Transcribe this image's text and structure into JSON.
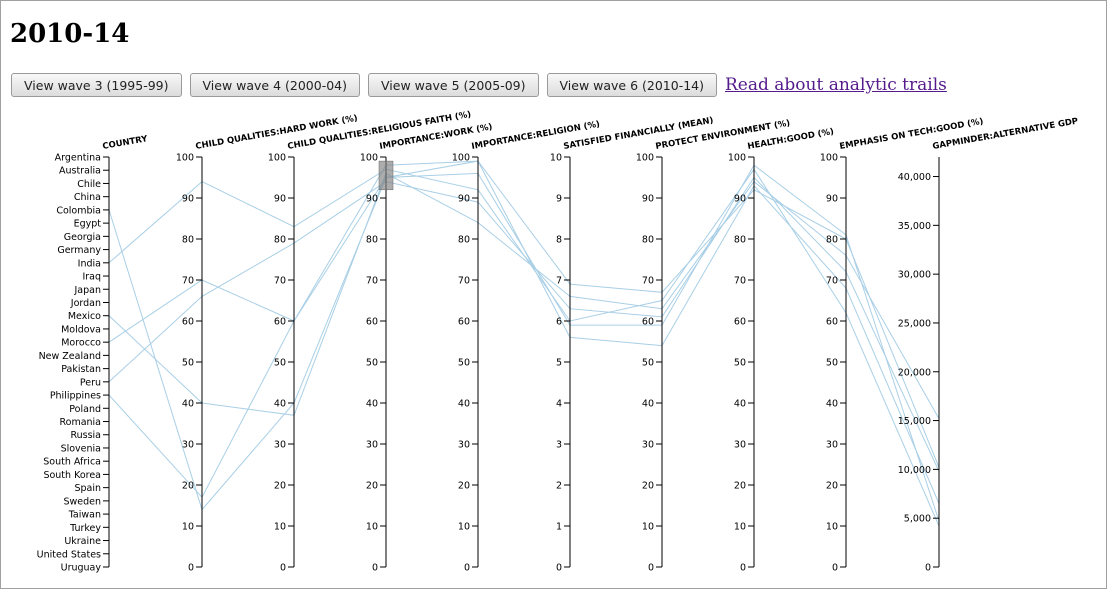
{
  "title": "2010-14",
  "buttons": [
    {
      "label": "View wave 3 (1995-99)"
    },
    {
      "label": "View wave 4 (2000-04)"
    },
    {
      "label": "View wave 5 (2005-09)"
    },
    {
      "label": "View wave 6 (2010-14)"
    }
  ],
  "link_label": "Read about analytic trails",
  "chart_data": {
    "type": "parallel-coordinates",
    "line_color": "#a9cfe6",
    "countries": [
      "Argentina",
      "Australia",
      "Chile",
      "China",
      "Colombia",
      "Egypt",
      "Georgia",
      "Germany",
      "India",
      "Iraq",
      "Japan",
      "Jordan",
      "Mexico",
      "Moldova",
      "Morocco",
      "New Zealand",
      "Pakistan",
      "Peru",
      "Philippines",
      "Poland",
      "Romania",
      "Russia",
      "Slovenia",
      "South Africa",
      "South Korea",
      "Spain",
      "Sweden",
      "Taiwan",
      "Turkey",
      "Ukraine",
      "United States",
      "Uruguay"
    ],
    "axes": [
      {
        "key": "country",
        "label": "COUNTRY",
        "type": "categorical"
      },
      {
        "key": "hard_work",
        "label": "CHILD QUALITIES:HARD WORK (%)",
        "domain": [
          0,
          100
        ],
        "ticks": [
          0,
          10,
          20,
          30,
          40,
          50,
          60,
          70,
          80,
          90,
          100
        ],
        "tick_labels": [
          "0",
          "10",
          "20",
          "30",
          "40",
          "50",
          "60",
          "70",
          "80",
          "90",
          "100"
        ]
      },
      {
        "key": "religious_faith",
        "label": "CHILD QUALITIES:RELIGIOUS FAITH (%)",
        "domain": [
          0,
          100
        ],
        "ticks": [
          0,
          10,
          20,
          30,
          40,
          50,
          60,
          70,
          80,
          90,
          100
        ],
        "tick_labels": [
          "0",
          "10",
          "20",
          "30",
          "40",
          "50",
          "60",
          "70",
          "80",
          "90",
          "100"
        ]
      },
      {
        "key": "importance_work",
        "label": "IMPORTANCE:WORK (%)",
        "domain": [
          0,
          100
        ],
        "ticks": [
          0,
          10,
          20,
          30,
          40,
          50,
          60,
          70,
          80,
          90,
          100
        ],
        "tick_labels": [
          "0",
          "10",
          "20",
          "30",
          "40",
          "50",
          "60",
          "70",
          "80",
          "90",
          "100"
        ],
        "brush": [
          92,
          99
        ]
      },
      {
        "key": "importance_religion",
        "label": "IMPORTANCE:RELIGION (%)",
        "domain": [
          0,
          100
        ],
        "ticks": [
          0,
          10,
          20,
          30,
          40,
          50,
          60,
          70,
          80,
          90,
          100
        ],
        "tick_labels": [
          "0",
          "10",
          "20",
          "30",
          "40",
          "50",
          "60",
          "70",
          "80",
          "90",
          "100"
        ]
      },
      {
        "key": "satisfied_financially",
        "label": "SATISFIED FINANCIALLY (MEAN)",
        "domain": [
          0,
          10
        ],
        "ticks": [
          0,
          1,
          2,
          3,
          4,
          5,
          6,
          7,
          8,
          9,
          10
        ],
        "tick_labels": [
          "0",
          "1",
          "2",
          "3",
          "4",
          "5",
          "6",
          "7",
          "8",
          "9",
          "10"
        ]
      },
      {
        "key": "protect_environment",
        "label": "PROTECT ENVIRONMENT (%)",
        "domain": [
          0,
          100
        ],
        "ticks": [
          0,
          10,
          20,
          30,
          40,
          50,
          60,
          70,
          80,
          90,
          100
        ],
        "tick_labels": [
          "0",
          "10",
          "20",
          "30",
          "40",
          "50",
          "60",
          "70",
          "80",
          "90",
          "100"
        ]
      },
      {
        "key": "health_good",
        "label": "HEALTH:GOOD (%)",
        "domain": [
          0,
          100
        ],
        "ticks": [
          0,
          10,
          20,
          30,
          40,
          50,
          60,
          70,
          80,
          90,
          100
        ],
        "tick_labels": [
          "0",
          "10",
          "20",
          "30",
          "40",
          "50",
          "60",
          "70",
          "80",
          "90",
          "100"
        ]
      },
      {
        "key": "emphasis_tech",
        "label": "EMPHASIS ON TECH:GOOD (%)",
        "domain": [
          0,
          100
        ],
        "ticks": [
          0,
          10,
          20,
          30,
          40,
          50,
          60,
          70,
          80,
          90,
          100
        ],
        "tick_labels": [
          "0",
          "10",
          "20",
          "30",
          "40",
          "50",
          "60",
          "70",
          "80",
          "90",
          "100"
        ]
      },
      {
        "key": "gdp",
        "label": "GAPMINDER:ALTERNATIVE GDP",
        "domain": [
          0,
          42000
        ],
        "ticks": [
          0,
          5000,
          10000,
          15000,
          20000,
          25000,
          30000,
          35000,
          40000
        ],
        "tick_labels": [
          "0",
          "5,000",
          "10,000",
          "15,000",
          "20,000",
          "25,000",
          "30,000",
          "35,000",
          "40,000"
        ]
      }
    ],
    "records": [
      {
        "country": "Colombia",
        "hard_work": 14,
        "religious_faith": 40,
        "importance_work": 95,
        "importance_religion": 99,
        "satisfied_financially": 6.9,
        "protect_environment": 67,
        "health_good": 92,
        "emphasis_tech": 80,
        "gdp": 10200
      },
      {
        "country": "India",
        "hard_work": 94,
        "religious_faith": 83,
        "importance_work": 97,
        "importance_religion": 92,
        "satisfied_financially": 6.0,
        "protect_environment": 65,
        "health_good": 97,
        "emphasis_tech": 62,
        "gdp": 4200
      },
      {
        "country": "Mexico",
        "hard_work": 40,
        "religious_faith": 37,
        "importance_work": 96,
        "importance_religion": 84,
        "satisfied_financially": 6.6,
        "protect_environment": 63,
        "health_good": 94,
        "emphasis_tech": 76,
        "gdp": 15200
      },
      {
        "country": "Morocco",
        "hard_work": 70,
        "religious_faith": 60,
        "importance_work": 98,
        "importance_religion": 99,
        "satisfied_financially": 5.6,
        "protect_environment": 54,
        "health_good": 93,
        "emphasis_tech": 68,
        "gdp": 6500
      },
      {
        "country": "Peru",
        "hard_work": 66,
        "religious_faith": 79,
        "importance_work": 94,
        "importance_religion": 89,
        "satisfied_financially": 6.3,
        "protect_environment": 61,
        "health_good": 95,
        "emphasis_tech": 72,
        "gdp": 9800
      },
      {
        "country": "Philippines",
        "hard_work": 17,
        "religious_faith": 60,
        "importance_work": 95,
        "importance_religion": 96,
        "satisfied_financially": 5.9,
        "protect_environment": 59,
        "health_good": 98,
        "emphasis_tech": 81,
        "gdp": 4700
      }
    ]
  }
}
